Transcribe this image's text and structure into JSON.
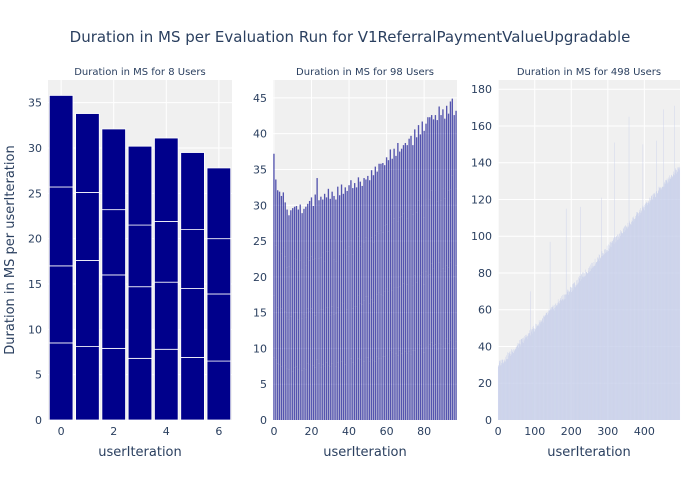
{
  "figure": {
    "title": "Duration in MS per Evaluation Run for V1ReferralPaymentValueUpgradable",
    "ylabel": "Duration in MS per userIteration"
  },
  "colors": {
    "panel_background": "#f0f0f0",
    "grid": "#ffffff",
    "text": "#2a3f5f",
    "bar_fill": "#00008b",
    "bar_fill_light": "#c7cfea",
    "bar_outline": "#ffffff"
  },
  "chart_data": [
    {
      "type": "bar",
      "barmode": "stack",
      "title": "Duration in MS for 8 Users",
      "xlabel": "userIteration",
      "ylabel": "Duration in MS per userIteration",
      "x_ticks": [
        0,
        2,
        4,
        6
      ],
      "y_ticks": [
        0,
        5,
        10,
        15,
        20,
        25,
        30,
        35
      ],
      "xlim": [
        -0.5,
        6.5
      ],
      "ylim": [
        0,
        37.5
      ],
      "grid": true,
      "legend": "none",
      "categories": [
        0,
        1,
        2,
        3,
        4,
        5,
        6
      ],
      "series": [
        {
          "values": [
            8.5,
            8.1,
            7.9,
            6.8,
            7.8,
            6.9,
            6.5
          ]
        },
        {
          "values": [
            8.5,
            9.5,
            8.1,
            7.9,
            7.4,
            7.6,
            7.4
          ]
        },
        {
          "values": [
            8.7,
            7.5,
            7.2,
            6.8,
            6.7,
            6.5,
            6.1
          ]
        },
        {
          "values": [
            10.1,
            8.7,
            8.9,
            8.7,
            9.2,
            8.5,
            7.8
          ]
        }
      ],
      "totals": [
        35.8,
        33.8,
        32.1,
        30.2,
        31.1,
        29.5,
        27.8
      ]
    },
    {
      "type": "bar",
      "barmode": "stack",
      "title": "Duration in MS for 98 Users",
      "xlabel": "userIteration",
      "ylabel": "",
      "x_ticks": [
        0,
        20,
        40,
        60,
        80
      ],
      "y_ticks": [
        0,
        5,
        10,
        15,
        20,
        25,
        30,
        35,
        40,
        45
      ],
      "xlim": [
        -0.5,
        97.5
      ],
      "ylim": [
        0,
        47.5
      ],
      "grid": true,
      "legend": "none",
      "categories": "userIteration 0-97",
      "totals": [
        37.2,
        33.6,
        32.1,
        31.9,
        31.3,
        31.8,
        30.4,
        29.4,
        28.6,
        29.3,
        29.6,
        29.8,
        29.9,
        29.4,
        30.1,
        28.9,
        29.5,
        29.8,
        30.2,
        30.6,
        31.1,
        29.9,
        31.5,
        33.8,
        30.7,
        31.2,
        30.8,
        31.6,
        31.1,
        32.3,
        30.9,
        31.9,
        31.3,
        30.8,
        32.6,
        31.4,
        32.9,
        31.6,
        32.5,
        32.0,
        32.8,
        33.5,
        32.4,
        33.1,
        32.5,
        33.9,
        33.3,
        32.7,
        33.8,
        33.6,
        34.1,
        33.5,
        34.9,
        34.2,
        35.4,
        34.7,
        35.8,
        35.8,
        35.9,
        35.6,
        36.7,
        36.3,
        37.8,
        36.5,
        37.9,
        36.9,
        38.7,
        37.5,
        37.9,
        38.4,
        38.7,
        38.4,
        39.3,
        39.7,
        38.4,
        40.6,
        39.5,
        41.2,
        39.9,
        41.7,
        40.4,
        41.4,
        42.3,
        42.3,
        42.6,
        42.0,
        42.6,
        41.9,
        43.8,
        42.6,
        43.4,
        42.1,
        43.9,
        42.8,
        44.5,
        44.9,
        42.6,
        43.2
      ]
    },
    {
      "type": "bar",
      "barmode": "stack",
      "title": "Duration in MS for 498 Users",
      "xlabel": "userIteration",
      "ylabel": "",
      "x_ticks": [
        0,
        100,
        200,
        300,
        400
      ],
      "y_ticks": [
        0,
        20,
        40,
        60,
        80,
        100,
        120,
        140,
        160,
        180
      ],
      "xlim": [
        -0.5,
        497.5
      ],
      "ylim": [
        0,
        185
      ],
      "grid": true,
      "legend": "none",
      "categories": "userIteration 0-497",
      "trend": {
        "start": 30,
        "end": 138
      },
      "spikes": [
        {
          "x": 88,
          "y": 70
        },
        {
          "x": 142,
          "y": 97
        },
        {
          "x": 186,
          "y": 115
        },
        {
          "x": 226,
          "y": 116
        },
        {
          "x": 282,
          "y": 121
        },
        {
          "x": 318,
          "y": 151
        },
        {
          "x": 358,
          "y": 165
        },
        {
          "x": 396,
          "y": 150
        },
        {
          "x": 433,
          "y": 152
        },
        {
          "x": 452,
          "y": 169
        },
        {
          "x": 482,
          "y": 171
        }
      ]
    }
  ]
}
